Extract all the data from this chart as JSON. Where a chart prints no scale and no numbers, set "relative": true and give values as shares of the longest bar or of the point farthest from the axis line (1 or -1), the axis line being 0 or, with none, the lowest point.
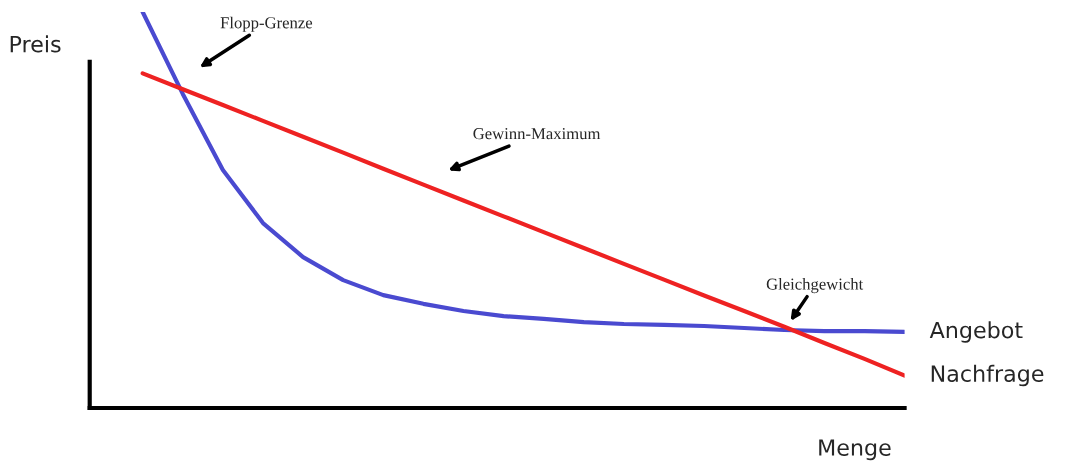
{
  "chart_data": {
    "type": "line",
    "relative": true,
    "xlabel": "Menge",
    "ylabel": "Preis",
    "categories": [
      null,
      null,
      null,
      null,
      null,
      null,
      null,
      null,
      null,
      null,
      null,
      null,
      null,
      null,
      null,
      null,
      null,
      null,
      null,
      null
    ],
    "series": [
      {
        "name": "Angebot",
        "color": "#4a4ad0",
        "values": [
          1.0,
          0.793,
          0.601,
          0.467,
          0.381,
          0.323,
          0.285,
          0.263,
          0.245,
          0.232,
          0.225,
          0.217,
          0.212,
          0.21,
          0.207,
          0.202,
          0.197,
          0.194,
          0.194,
          0.192
        ]
      },
      {
        "name": "Nachfrage",
        "color": "#ee2222",
        "values": [
          0.845,
          0.805,
          0.765,
          0.725,
          0.685,
          0.645,
          0.604,
          0.564,
          0.524,
          0.484,
          0.444,
          0.404,
          0.364,
          0.324,
          0.284,
          0.245,
          0.205,
          0.164,
          0.124,
          0.082
        ]
      }
    ],
    "annotations": [
      "Flopp-Grenze",
      "Gewinn-Maximum",
      "Gleichgewicht"
    ],
    "legend": false,
    "marker": "none",
    "line_style": "solid"
  }
}
